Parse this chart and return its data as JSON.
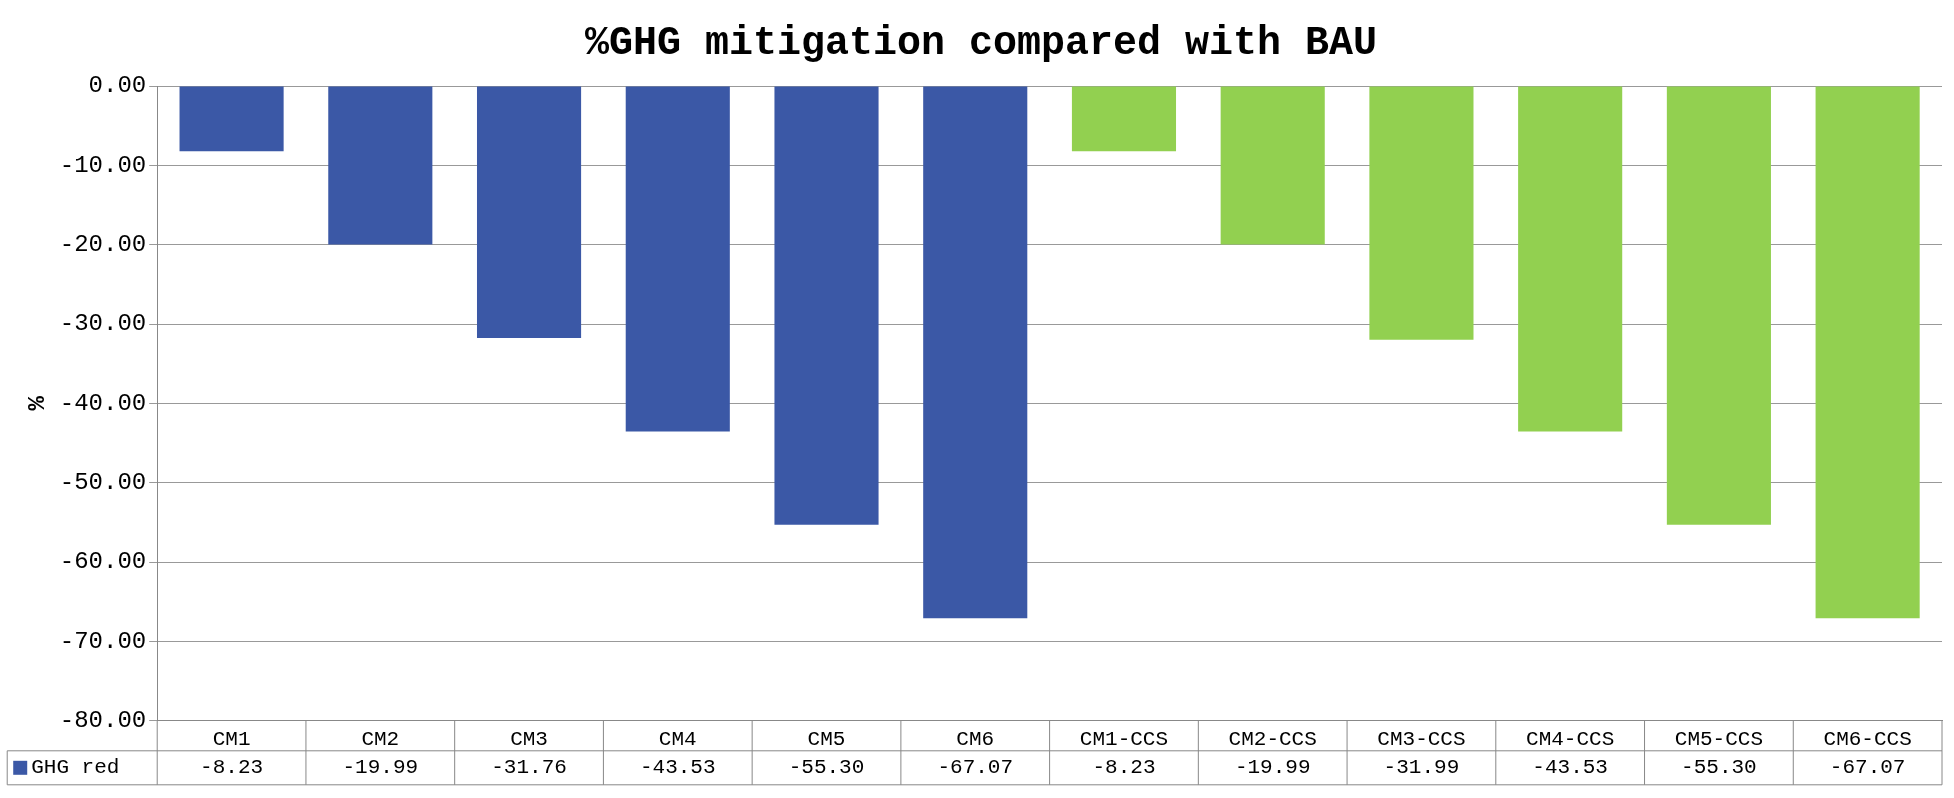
{
  "chart_data": {
    "type": "bar",
    "title": "%GHG mitigation compared with BAU",
    "ylabel": "%",
    "categories": [
      "CM1",
      "CM2",
      "CM3",
      "CM4",
      "CM5",
      "CM6",
      "CM1-CCS",
      "CM2-CCS",
      "CM3-CCS",
      "CM4-CCS",
      "CM5-CCS",
      "CM6-CCS"
    ],
    "series": [
      {
        "name": "GHG red",
        "colors": [
          "#3b58a6",
          "#3b58a6",
          "#3b58a6",
          "#3b58a6",
          "#3b58a6",
          "#3b58a6",
          "#92d050",
          "#92d050",
          "#92d050",
          "#92d050",
          "#92d050",
          "#92d050"
        ],
        "values": [
          -8.23,
          -19.99,
          -31.76,
          -43.53,
          -55.3,
          -67.07,
          -8.23,
          -19.99,
          -31.99,
          -43.53,
          -55.3,
          -67.07
        ],
        "value_labels": [
          "-8.23",
          "-19.99",
          "-31.76",
          "-43.53",
          "-55.30",
          "-67.07",
          "-8.23",
          "-19.99",
          "-31.99",
          "-43.53",
          "-55.30",
          "-67.07"
        ]
      }
    ],
    "ylim": [
      -80,
      0
    ],
    "yticks": [
      {
        "value": -80,
        "label": "-80.00"
      },
      {
        "value": -70,
        "label": "-70.00"
      },
      {
        "value": -60,
        "label": "-60.00"
      },
      {
        "value": -50,
        "label": "-50.00"
      },
      {
        "value": -40,
        "label": "-40.00"
      },
      {
        "value": -30,
        "label": "-30.00"
      },
      {
        "value": -20,
        "label": "-20.00"
      },
      {
        "value": -10,
        "label": "-10.00"
      },
      {
        "value": 0,
        "label": "0.00"
      }
    ],
    "grid": "y",
    "legend": "bottom"
  }
}
